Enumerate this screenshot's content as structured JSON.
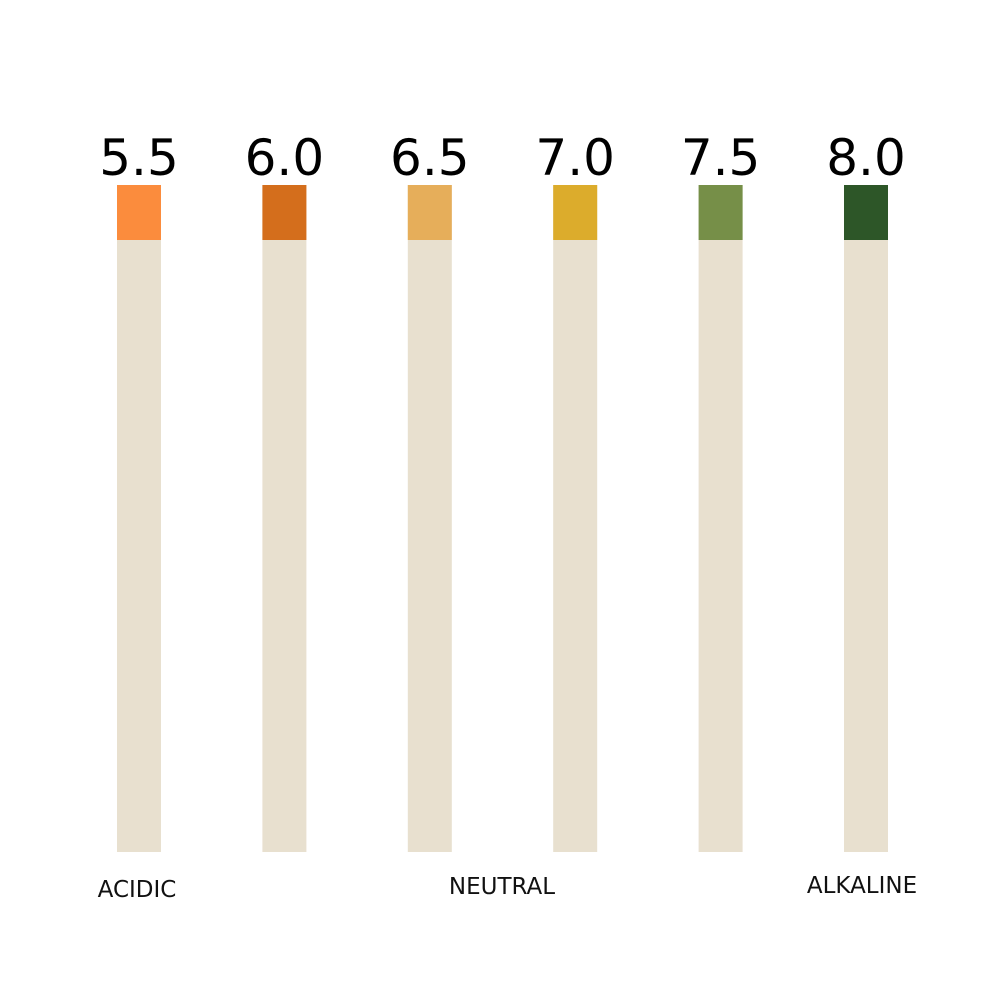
{
  "strips": [
    {
      "label": "5.5",
      "color": "#fb8c3d"
    },
    {
      "label": "6.0",
      "color": "#d46e1c"
    },
    {
      "label": "6.5",
      "color": "#e6ae5a"
    },
    {
      "label": "7.0",
      "color": "#dcac2c"
    },
    {
      "label": "7.5",
      "color": "#768f48"
    },
    {
      "label": "8.0",
      "color": "#2d5628"
    }
  ],
  "strip_color": "#e8e0cf",
  "scale_labels": [
    "ACIDIC",
    "NEUTRAL",
    "ALKALINE"
  ]
}
